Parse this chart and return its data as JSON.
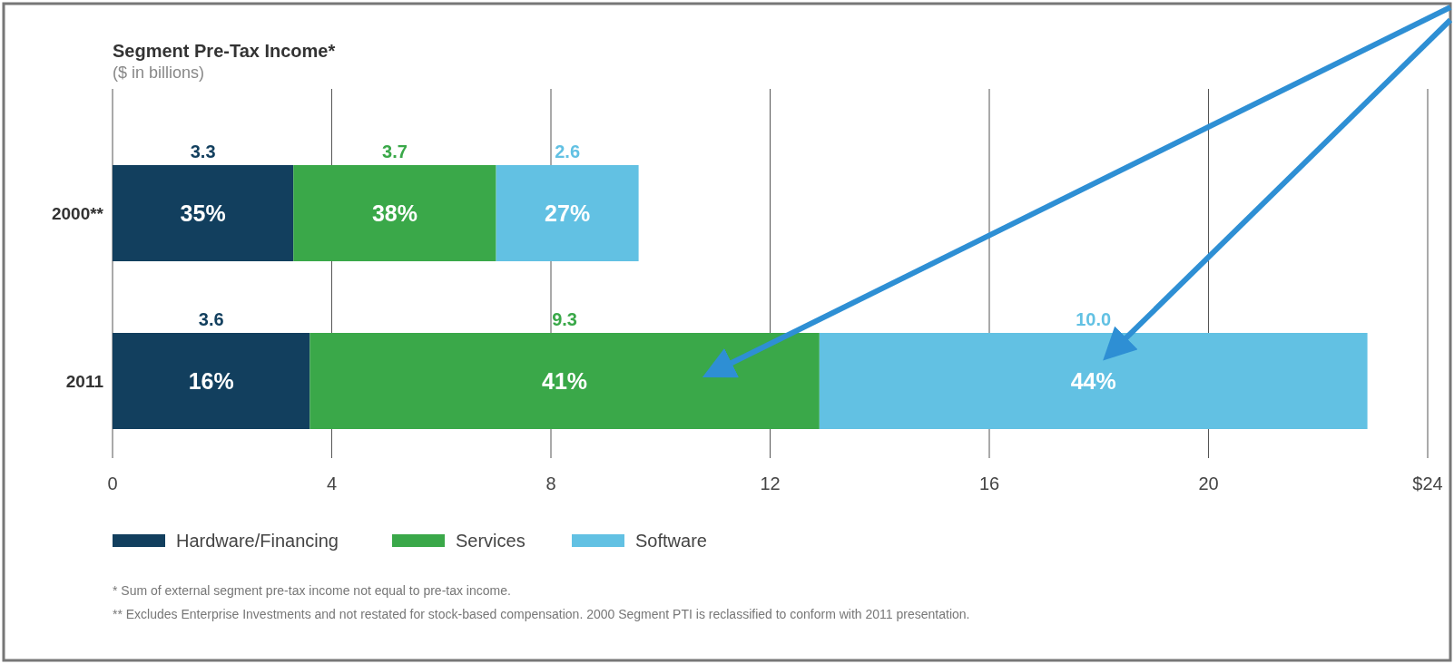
{
  "chart_data": {
    "type": "bar",
    "orientation": "horizontal",
    "stacked": true,
    "title": "Segment Pre-Tax Income*",
    "subtitle": "($ in billions)",
    "categories": [
      "2000**",
      "2011"
    ],
    "series": [
      {
        "name": "Hardware/Financing",
        "color": "#123f5e",
        "values": [
          3.3,
          3.6
        ],
        "value_labels": [
          "3.3",
          "3.6"
        ]
      },
      {
        "name": "Services",
        "color": "#3aa849",
        "values": [
          3.7,
          9.3
        ],
        "value_labels": [
          "3.7",
          "9.3"
        ]
      },
      {
        "name": "Software",
        "color": "#62c1e3",
        "values": [
          2.6,
          10.0
        ],
        "value_labels": [
          "2.6",
          "10.0"
        ]
      }
    ],
    "xlim": [
      0,
      24
    ],
    "xticks": [
      0,
      4,
      8,
      12,
      16,
      20,
      {
        "value": 24,
        "label": "$24"
      }
    ],
    "grid": "x",
    "legend": "bottom left",
    "annotations": [
      "35%",
      "38%",
      "27%",
      "16%",
      "41%",
      "44%",
      "* Sum of external segment pre-tax income not equal to pre-tax income.",
      "** Excludes Enterprise Investments and not restated for stock-based compensation. 2000 Segment PTI is reclassified to conform with 2011 presentation."
    ]
  }
}
